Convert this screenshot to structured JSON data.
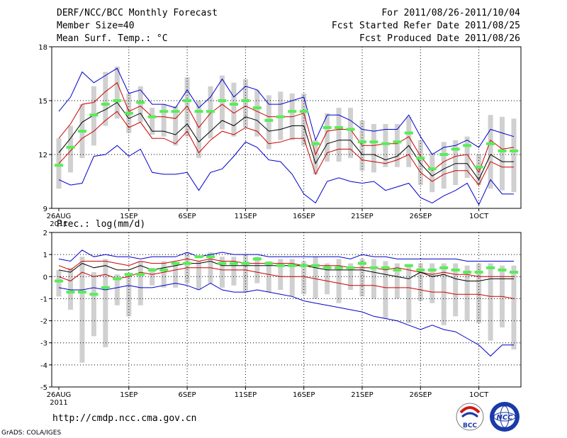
{
  "header": {
    "title": "DERF/NCC/BCC Monthly Forecast",
    "member_size": "Member Size=40",
    "variable": "Mean Surf. Temp.: °C",
    "period": "For 2011/08/26-2011/10/04",
    "fcst_start": "Fcst Started Refer Date 2011/08/25",
    "fcst_produced": "Fcst Produced Date 2011/08/26"
  },
  "footer": {
    "url": "http://cmdp.ncc.cma.gov.cn",
    "grads": "GrADS: COLA/IGES",
    "logo_bcc": "BCC",
    "logo_ncc": "NCC"
  },
  "colors": {
    "box": "#d0d0d0",
    "median": "#55ee55",
    "mean": "#000000",
    "std": "#cc0000",
    "envelope": "#0000cc",
    "grid": "#000000"
  },
  "chart_data": [
    {
      "type": "box-plume",
      "title": "Mean Surf. Temp.: °C",
      "ylim": [
        9,
        18
      ],
      "yticks": [
        "9",
        "12",
        "15",
        "18"
      ],
      "xticks": [
        {
          "day": 0,
          "label": "26AUG",
          "sub": "2011"
        },
        {
          "day": 6,
          "label": "1SEP"
        },
        {
          "day": 11,
          "label": "6SEP"
        },
        {
          "day": 16,
          "label": "11SEP"
        },
        {
          "day": 21,
          "label": "16SEP"
        },
        {
          "day": 26,
          "label": "21SEP"
        },
        {
          "day": 31,
          "label": "26SEP"
        },
        {
          "day": 36,
          "label": "1OCT"
        }
      ],
      "series": {
        "max": [
          14.4,
          15.2,
          16.6,
          16.0,
          16.4,
          16.8,
          15.4,
          15.6,
          14.8,
          14.8,
          14.6,
          15.6,
          14.6,
          15.2,
          16.2,
          15.2,
          15.8,
          15.6,
          14.8,
          14.8,
          15.0,
          15.2,
          12.8,
          14.2,
          14.2,
          13.9,
          13.4,
          13.3,
          13.4,
          13.4,
          14.2,
          13.0,
          12.0,
          12.4,
          12.5,
          12.8,
          12.4,
          13.4,
          13.2,
          13.0
        ],
        "mean_plus_std": [
          12.9,
          13.7,
          14.8,
          14.9,
          15.5,
          16.0,
          14.4,
          14.7,
          14.1,
          14.1,
          14.0,
          14.7,
          13.5,
          14.3,
          14.8,
          14.3,
          14.7,
          14.4,
          14.1,
          14.1,
          14.1,
          14.3,
          12.0,
          13.3,
          13.4,
          13.4,
          12.5,
          12.5,
          12.6,
          12.6,
          13.0,
          11.9,
          11.1,
          11.6,
          11.9,
          12.0,
          11.0,
          12.8,
          12.3,
          12.4
        ],
        "mean": [
          12.1,
          12.9,
          13.8,
          14.2,
          14.5,
          14.9,
          14.0,
          14.3,
          13.3,
          13.3,
          13.1,
          13.7,
          12.7,
          13.3,
          13.9,
          13.6,
          14.1,
          13.9,
          13.3,
          13.4,
          13.6,
          13.6,
          11.5,
          12.6,
          12.8,
          12.8,
          12.0,
          12.0,
          11.7,
          11.9,
          12.5,
          11.5,
          10.8,
          11.2,
          11.5,
          11.5,
          10.6,
          12.0,
          11.6,
          11.6
        ],
        "mean_minus_std": [
          11.5,
          12.2,
          12.9,
          13.3,
          13.9,
          14.4,
          13.5,
          13.8,
          12.9,
          12.9,
          12.6,
          13.3,
          12.1,
          12.8,
          13.3,
          13.1,
          13.5,
          13.3,
          12.6,
          12.7,
          12.9,
          12.9,
          10.9,
          12.1,
          12.3,
          12.3,
          11.7,
          11.6,
          11.5,
          11.7,
          12.0,
          11.0,
          10.5,
          10.9,
          11.1,
          11.1,
          10.3,
          11.6,
          11.3,
          11.3
        ],
        "min": [
          10.6,
          10.3,
          10.4,
          11.9,
          12.0,
          12.5,
          11.9,
          12.3,
          11.0,
          10.9,
          10.9,
          11.0,
          10.0,
          11.0,
          11.2,
          11.9,
          12.7,
          12.4,
          11.7,
          11.6,
          10.9,
          9.8,
          9.3,
          10.5,
          10.7,
          10.5,
          10.4,
          10.5,
          10.0,
          10.2,
          10.4,
          9.6,
          9.3,
          9.7,
          10.0,
          10.4,
          9.2,
          10.6,
          9.8,
          9.8
        ],
        "box_upper": [
          12.9,
          13.6,
          14.8,
          15.8,
          16.6,
          16.9,
          15.4,
          15.8,
          14.6,
          14.8,
          14.7,
          16.3,
          15.0,
          15.8,
          16.4,
          16.0,
          16.2,
          15.6,
          15.3,
          15.5,
          15.4,
          15.4,
          12.8,
          14.3,
          14.6,
          14.6,
          13.9,
          13.7,
          13.7,
          13.7,
          14.1,
          12.8,
          12.1,
          12.7,
          12.8,
          13.0,
          12.0,
          14.2,
          14.1,
          14.0
        ],
        "box_lower": [
          10.1,
          11.0,
          11.8,
          12.5,
          13.6,
          14.0,
          13.2,
          13.8,
          13.1,
          13.0,
          12.5,
          13.0,
          11.8,
          12.9,
          13.4,
          13.0,
          13.5,
          13.0,
          12.3,
          12.8,
          12.8,
          12.5,
          10.9,
          11.6,
          11.6,
          11.8,
          11.1,
          11.0,
          11.3,
          11.3,
          11.3,
          10.3,
          9.9,
          10.1,
          10.3,
          10.7,
          10.3,
          10.1,
          10.0,
          9.9
        ],
        "median": [
          11.4,
          12.4,
          13.3,
          14.2,
          14.8,
          15.0,
          14.3,
          14.9,
          14.1,
          14.4,
          14.4,
          15.0,
          14.4,
          14.4,
          15.0,
          14.8,
          15.0,
          14.6,
          13.9,
          14.1,
          14.4,
          14.4,
          12.6,
          13.5,
          13.5,
          13.4,
          12.7,
          12.7,
          12.6,
          12.7,
          13.2,
          11.8,
          11.2,
          12.0,
          12.3,
          12.5,
          11.3,
          12.6,
          12.2,
          12.2
        ]
      }
    },
    {
      "type": "box-plume",
      "title": "Prec.: log(mm/d)",
      "ylim": [
        -5,
        2
      ],
      "yticks": [
        "-5",
        "-4",
        "-3",
        "-2",
        "-1",
        "0",
        "1",
        "2"
      ],
      "xticks": [
        {
          "day": 0,
          "label": "26AUG",
          "sub": "2011"
        },
        {
          "day": 6,
          "label": "1SEP"
        },
        {
          "day": 11,
          "label": "6SEP"
        },
        {
          "day": 16,
          "label": "11SEP"
        },
        {
          "day": 21,
          "label": "16SEP"
        },
        {
          "day": 26,
          "label": "21SEP"
        },
        {
          "day": 31,
          "label": "26SEP"
        },
        {
          "day": 36,
          "label": "1OCT"
        }
      ],
      "series": {
        "max": [
          0.8,
          0.7,
          1.2,
          0.9,
          1.0,
          0.9,
          0.9,
          0.8,
          0.9,
          0.9,
          0.9,
          1.1,
          0.9,
          1.0,
          1.1,
          1.0,
          1.0,
          1.0,
          0.9,
          0.9,
          0.9,
          0.9,
          0.9,
          0.9,
          0.9,
          0.8,
          1.0,
          0.9,
          0.9,
          0.8,
          0.8,
          0.8,
          0.8,
          0.8,
          0.8,
          0.7,
          0.7,
          0.7,
          0.7,
          0.7
        ],
        "mean_plus_std": [
          0.5,
          0.3,
          0.7,
          0.7,
          0.7,
          0.6,
          0.5,
          0.7,
          0.6,
          0.6,
          0.7,
          0.8,
          0.7,
          0.8,
          0.7,
          0.7,
          0.6,
          0.6,
          0.6,
          0.6,
          0.6,
          0.5,
          0.5,
          0.5,
          0.5,
          0.4,
          0.4,
          0.4,
          0.3,
          0.4,
          0.3,
          0.2,
          0.1,
          0.2,
          0.1,
          0.1,
          0.0,
          0.0,
          0.0,
          0.0
        ],
        "mean": [
          0.3,
          0.2,
          0.6,
          0.4,
          0.5,
          0.3,
          0.3,
          0.5,
          0.3,
          0.4,
          0.5,
          0.6,
          0.6,
          0.7,
          0.5,
          0.5,
          0.5,
          0.5,
          0.5,
          0.5,
          0.5,
          0.5,
          0.4,
          0.3,
          0.3,
          0.3,
          0.3,
          0.2,
          0.1,
          0.0,
          -0.1,
          0.2,
          0.0,
          0.1,
          -0.1,
          -0.2,
          -0.2,
          -0.1,
          -0.1,
          -0.1
        ],
        "mean_minus_std": [
          0.0,
          -0.2,
          0.2,
          0.0,
          0.1,
          -0.1,
          0.0,
          0.2,
          0.1,
          0.2,
          0.3,
          0.4,
          0.4,
          0.4,
          0.3,
          0.3,
          0.3,
          0.2,
          0.1,
          0.0,
          0.0,
          0.0,
          -0.1,
          -0.2,
          -0.3,
          -0.4,
          -0.4,
          -0.4,
          -0.5,
          -0.5,
          -0.5,
          -0.6,
          -0.7,
          -0.7,
          -0.8,
          -0.8,
          -0.8,
          -0.9,
          -0.9,
          -1.0
        ],
        "min": [
          -0.5,
          -0.6,
          -0.6,
          -0.5,
          -0.6,
          -0.5,
          -0.4,
          -0.5,
          -0.5,
          -0.4,
          -0.3,
          -0.4,
          -0.6,
          -0.3,
          -0.6,
          -0.7,
          -0.7,
          -0.6,
          -0.7,
          -0.8,
          -0.9,
          -1.1,
          -1.2,
          -1.3,
          -1.4,
          -1.5,
          -1.6,
          -1.8,
          -1.9,
          -2.0,
          -2.2,
          -2.4,
          -2.2,
          -2.4,
          -2.5,
          -2.8,
          -3.1,
          -3.6,
          -3.1,
          -3.1
        ],
        "box_upper": [
          0.3,
          0.4,
          0.9,
          0.2,
          0.8,
          0.1,
          0.1,
          0.7,
          0.4,
          0.7,
          0.6,
          1.1,
          0.7,
          1.1,
          0.9,
          0.9,
          1.0,
          0.9,
          0.7,
          0.8,
          0.8,
          0.7,
          0.9,
          0.6,
          0.8,
          0.6,
          0.8,
          0.8,
          0.7,
          0.6,
          0.5,
          0.6,
          0.6,
          0.6,
          0.6,
          0.5,
          0.6,
          0.6,
          0.5,
          0.5
        ],
        "box_lower": [
          -0.9,
          -1.5,
          -3.9,
          -2.7,
          -3.2,
          -1.3,
          -1.8,
          -1.3,
          -0.4,
          -0.5,
          -0.5,
          -0.3,
          -0.6,
          -0.3,
          -0.5,
          -0.4,
          -0.7,
          -0.3,
          -0.7,
          -0.6,
          -0.9,
          -0.8,
          -1.0,
          -0.8,
          -1.2,
          -0.6,
          -0.9,
          -1.0,
          -1.9,
          -1.0,
          -2.1,
          -1.1,
          -1.2,
          -2.2,
          -1.8,
          -2.0,
          -2.1,
          -2.9,
          -2.3,
          -3.3
        ],
        "median": [
          -0.2,
          -0.7,
          -0.7,
          -0.8,
          -0.5,
          -0.1,
          0.1,
          0.1,
          0.3,
          0.3,
          0.6,
          0.6,
          0.9,
          0.9,
          0.6,
          0.6,
          0.6,
          0.8,
          0.6,
          0.5,
          0.5,
          0.5,
          0.5,
          0.4,
          0.4,
          0.4,
          0.6,
          0.4,
          0.4,
          0.3,
          0.5,
          0.3,
          0.3,
          0.4,
          0.3,
          0.2,
          0.2,
          0.4,
          0.3,
          0.2
        ]
      }
    }
  ]
}
